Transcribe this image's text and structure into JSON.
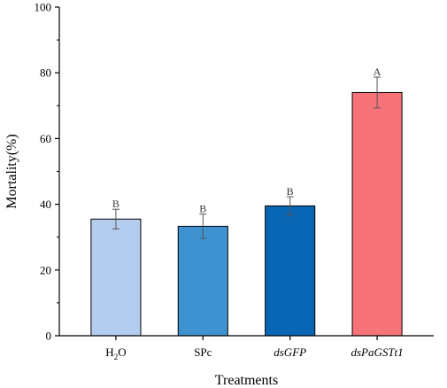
{
  "chart_data": {
    "type": "bar",
    "title": "",
    "xlabel": "Treatments",
    "ylabel": "Mortality(%)",
    "ylim": [
      0,
      100
    ],
    "yticks": [
      "0",
      "20",
      "40",
      "60",
      "80",
      "100"
    ],
    "categories": [
      {
        "text": "H",
        "sub": "2",
        "after": "O",
        "italic": false
      },
      {
        "text": "SPc",
        "sub": "",
        "after": "",
        "italic": false
      },
      {
        "text": "dsGFP",
        "sub": "",
        "after": "",
        "italic": true
      },
      {
        "text": "dsPaGSTt1",
        "sub": "",
        "after": "",
        "italic": true
      }
    ],
    "values": [
      35.5,
      33.3,
      39.5,
      74.0
    ],
    "errors": [
      3.0,
      3.7,
      2.8,
      4.7
    ],
    "significance": [
      "B",
      "B",
      "B",
      "A"
    ],
    "colors": [
      "#b4cdef",
      "#3d92cf",
      "#0866b4",
      "#f7737a"
    ],
    "grid": false,
    "legend": "none"
  }
}
